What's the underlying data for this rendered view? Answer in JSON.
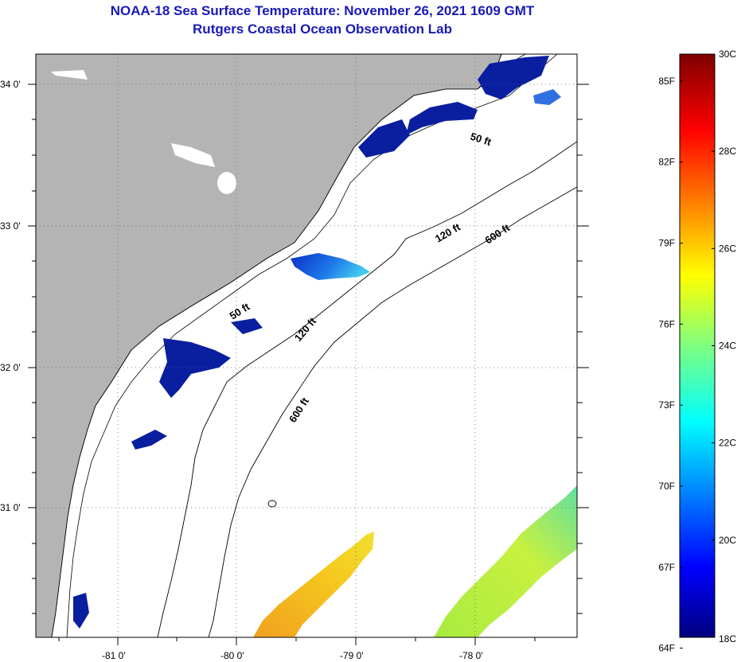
{
  "title": "NOAA-18 Sea Surface Temperature:  November 26, 2021 1609 GMT",
  "subtitle": "Rutgers Coastal Ocean Observation Lab",
  "map": {
    "lat_labels": [
      "34 0'",
      "33 0'",
      "32 0'",
      "31 0'"
    ],
    "lon_labels": [
      "-81 0'",
      "-80 0'",
      "-79 0'",
      "-78 0'"
    ],
    "contours": {
      "c50_upper": "50 ft",
      "c50_lower": "50 ft",
      "c120_upper": "120 ft",
      "c120_lower": "120 ft",
      "c600_upper": "600 ft",
      "c600_lower": "600 ft"
    },
    "colors": {
      "land": "#b4b4b4",
      "cold_water": "#0a1ea0",
      "coast_line": "#000000"
    }
  },
  "colorbar": {
    "min_c": 18,
    "max_c": 30,
    "celsius_labels": [
      "30C",
      "28C",
      "26C",
      "24C",
      "22C",
      "20C",
      "18C"
    ],
    "fahrenheit_labels": [
      "85F",
      "82F",
      "79F",
      "76F",
      "73F",
      "70F",
      "67F",
      "64F"
    ]
  }
}
